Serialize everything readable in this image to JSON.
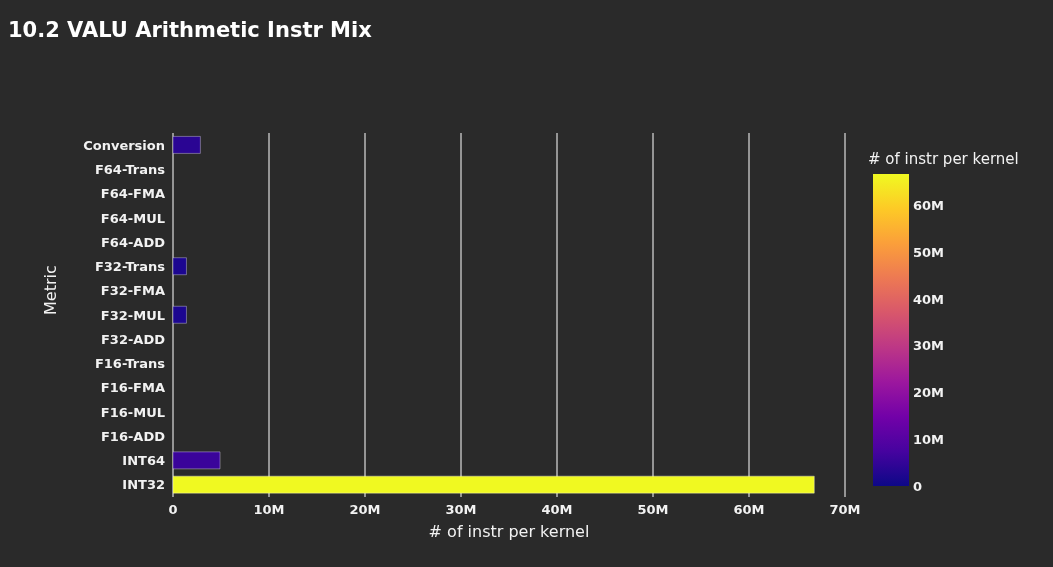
{
  "chart_data": {
    "type": "bar",
    "orientation": "horizontal",
    "title": "10.2 VALU Arithmetic Instr Mix",
    "xlabel": "# of instr per kernel",
    "ylabel": "Metric",
    "clabel": "# of instr per kernel",
    "categories": [
      "Conversion",
      "F64-Trans",
      "F64-FMA",
      "F64-MUL",
      "F64-ADD",
      "F32-Trans",
      "F32-FMA",
      "F32-MUL",
      "F32-ADD",
      "F16-Trans",
      "F16-FMA",
      "F16-MUL",
      "F16-ADD",
      "INT64",
      "INT32"
    ],
    "values": [
      2850000,
      0,
      0,
      0,
      0,
      1400000,
      0,
      1400000,
      0,
      0,
      0,
      0,
      0,
      4900000,
      66800000
    ],
    "colors": [
      "#2a0593",
      "#0d0887",
      "#0d0887",
      "#0d0887",
      "#0d0887",
      "#1c0690",
      "#0d0887",
      "#1c0690",
      "#0d0887",
      "#0d0887",
      "#0d0887",
      "#0d0887",
      "#0d0887",
      "#3a049a",
      "#f0f921"
    ],
    "xlim": [
      0,
      70000000
    ],
    "xticks": [
      0,
      {
        "value": 10000000,
        "label": "10M"
      },
      {
        "value": 20000000,
        "label": "20M"
      },
      {
        "value": 30000000,
        "label": "30M"
      },
      {
        "value": 40000000,
        "label": "40M"
      },
      {
        "value": 50000000,
        "label": "50M"
      },
      {
        "value": 60000000,
        "label": "60M"
      },
      {
        "value": 70000000,
        "label": "70M"
      }
    ],
    "clim": [
      0,
      66800000
    ],
    "cticks": [
      0,
      {
        "value": 10000000,
        "label": "10M"
      },
      {
        "value": 20000000,
        "label": "20M"
      },
      {
        "value": 30000000,
        "label": "30M"
      },
      {
        "value": 40000000,
        "label": "40M"
      },
      {
        "value": 50000000,
        "label": "50M"
      },
      {
        "value": 60000000,
        "label": "60M"
      }
    ],
    "grid": "x"
  }
}
